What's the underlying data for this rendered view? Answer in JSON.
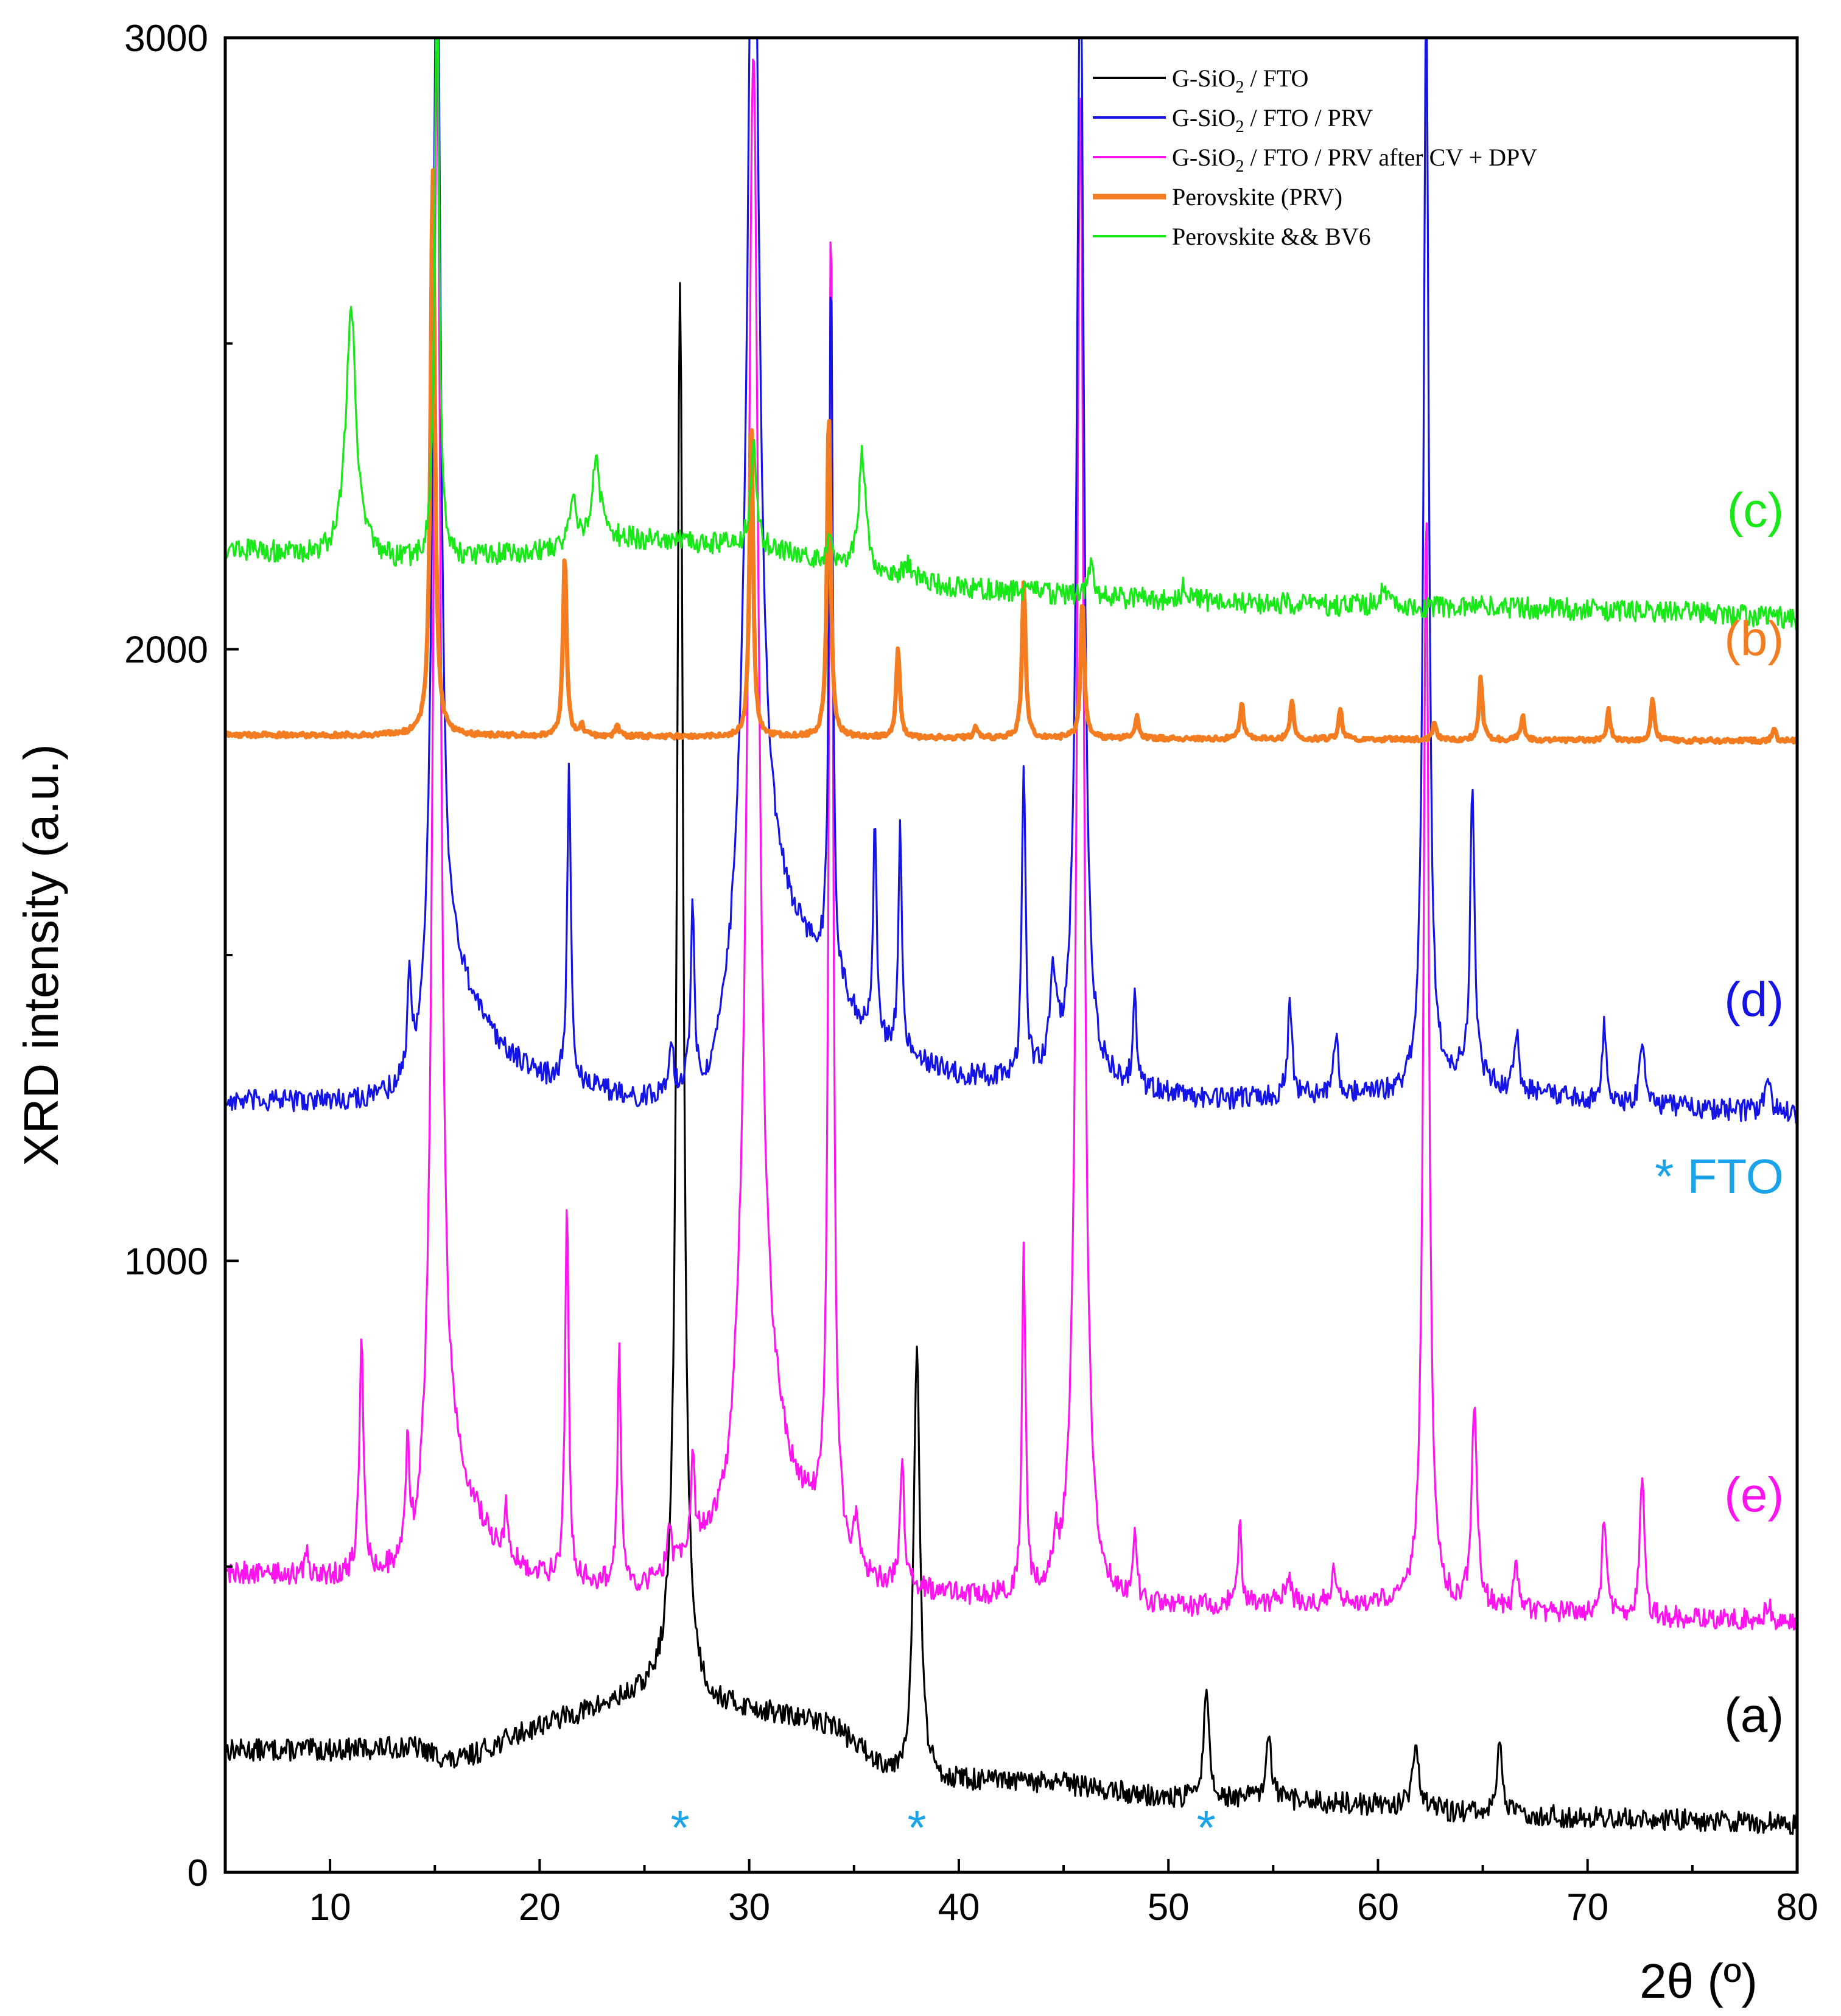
{
  "chart_data": {
    "type": "line",
    "title": "",
    "xlabel": "2θ (º)",
    "ylabel": "XRD intensity (a.u.)",
    "xlim": [
      5,
      80
    ],
    "ylim": [
      0,
      3000
    ],
    "x_ticks": [
      10,
      20,
      30,
      40,
      50,
      60,
      70,
      80
    ],
    "y_ticks": [
      0,
      1000,
      2000,
      3000
    ],
    "fto_label": "* FTO",
    "fto_marker": "*",
    "fto_color": "#1aa3e8",
    "fto_positions": [
      26.7,
      38.0,
      51.8
    ],
    "series": [
      {
        "name": "G-SiO2 / FTO",
        "legend_main": "G-SiO",
        "legend_sub": "2",
        "legend_rest": " / FTO",
        "curve_label": "(a)",
        "color": "#000000",
        "label_color": "#000000",
        "label_y": 230,
        "anchors": [
          [
            5,
            200
          ],
          [
            10,
            200
          ],
          [
            14,
            205
          ],
          [
            16,
            180
          ],
          [
            20,
            240
          ],
          [
            24,
            280
          ],
          [
            26,
            300
          ],
          [
            28,
            270
          ],
          [
            30,
            265
          ],
          [
            34,
            240
          ],
          [
            36,
            180
          ],
          [
            37,
            160
          ],
          [
            39,
            150
          ],
          [
            45,
            145
          ],
          [
            50,
            120
          ],
          [
            54,
            120
          ],
          [
            60,
            110
          ],
          [
            65,
            95
          ],
          [
            70,
            90
          ],
          [
            75,
            85
          ],
          [
            80,
            80
          ]
        ],
        "peaks": [
          [
            26.7,
            2320,
            0.18
          ],
          [
            38.0,
            700,
            0.18
          ],
          [
            51.8,
            180,
            0.15
          ],
          [
            54.8,
            100,
            0.15
          ],
          [
            61.8,
            100,
            0.2
          ],
          [
            65.8,
            120,
            0.15
          ]
        ]
      },
      {
        "name": "Perovskite (PRV)",
        "legend_main": "Perovskite (PRV)",
        "legend_sub": "",
        "legend_rest": "",
        "curve_label": "(b)",
        "color": "#f47c20",
        "label_color": "#f47c20",
        "label_y": 1990,
        "anchors": [
          [
            5,
            1860
          ],
          [
            80,
            1850
          ]
        ],
        "peaks": [
          [
            14.9,
            930,
            0.12
          ],
          [
            21.2,
            300,
            0.1
          ],
          [
            22.0,
            20,
            0.1
          ],
          [
            23.7,
            20,
            0.1
          ],
          [
            30.1,
            530,
            0.1
          ],
          [
            33.8,
            540,
            0.1
          ],
          [
            37.1,
            150,
            0.1
          ],
          [
            40.8,
            20,
            0.1
          ],
          [
            43.1,
            260,
            0.1
          ],
          [
            45.9,
            230,
            0.1
          ],
          [
            48.5,
            40,
            0.1
          ],
          [
            53.5,
            60,
            0.1
          ],
          [
            55.9,
            65,
            0.1
          ],
          [
            58.2,
            50,
            0.1
          ],
          [
            62.7,
            30,
            0.1
          ],
          [
            64.9,
            100,
            0.1
          ],
          [
            66.9,
            40,
            0.1
          ],
          [
            71.0,
            50,
            0.1
          ],
          [
            73.1,
            70,
            0.1
          ],
          [
            78.9,
            20,
            0.1
          ]
        ]
      },
      {
        "name": "Perovskite && BV6",
        "legend_main": "Perovskite && BV6",
        "legend_sub": "",
        "legend_rest": "",
        "curve_label": "(c)",
        "color": "#18e818",
        "label_color": "#18e818",
        "label_y": 2200,
        "anchors": [
          [
            5,
            2165
          ],
          [
            10,
            2150
          ],
          [
            14,
            2140
          ],
          [
            20,
            2160
          ],
          [
            24,
            2180
          ],
          [
            30,
            2170
          ],
          [
            34,
            2140
          ],
          [
            40,
            2100
          ],
          [
            45,
            2090
          ],
          [
            50,
            2080
          ],
          [
            55,
            2075
          ],
          [
            60,
            2070
          ],
          [
            65,
            2070
          ],
          [
            70,
            2065
          ],
          [
            75,
            2060
          ],
          [
            80,
            2050
          ]
        ],
        "peaks": [
          [
            11.0,
            410,
            0.3
          ],
          [
            15.1,
            1000,
            0.12
          ],
          [
            21.6,
            80,
            0.2
          ],
          [
            22.7,
            130,
            0.25
          ],
          [
            30.2,
            180,
            0.15
          ],
          [
            33.8,
            40,
            0.15
          ],
          [
            35.4,
            190,
            0.2
          ],
          [
            37.6,
            25,
            0.2
          ],
          [
            46.3,
            50,
            0.15
          ],
          [
            50.8,
            25,
            0.2
          ],
          [
            60.2,
            20,
            0.3
          ]
        ]
      },
      {
        "name": "G-SiO2 / FTO / PRV",
        "legend_main": "G-SiO",
        "legend_sub": "2",
        "legend_rest": " / FTO / PRV",
        "curve_label": "(d)",
        "color": "#1414e6",
        "label_color": "#1414e6",
        "label_y": 1400,
        "anchors": [
          [
            5,
            1260
          ],
          [
            12,
            1260
          ],
          [
            14,
            1270
          ],
          [
            16,
            1450
          ],
          [
            18,
            1350
          ],
          [
            20,
            1300
          ],
          [
            25,
            1260
          ],
          [
            28,
            1280
          ],
          [
            29,
            1400
          ],
          [
            30,
            1700
          ],
          [
            32,
            1550
          ],
          [
            34,
            1450
          ],
          [
            36,
            1350
          ],
          [
            40,
            1300
          ],
          [
            44,
            1290
          ],
          [
            48,
            1280
          ],
          [
            52,
            1260
          ],
          [
            56,
            1270
          ],
          [
            62,
            1270
          ],
          [
            64,
            1300
          ],
          [
            66,
            1280
          ],
          [
            70,
            1260
          ],
          [
            80,
            1240
          ]
        ],
        "peaks": [
          [
            13.8,
            170,
            0.12
          ],
          [
            15.1,
            1900,
            0.22
          ],
          [
            21.4,
            520,
            0.1
          ],
          [
            26.3,
            80,
            0.1
          ],
          [
            27.3,
            300,
            0.1
          ],
          [
            30.2,
            1800,
            0.3
          ],
          [
            33.9,
            1180,
            0.1
          ],
          [
            36.0,
            370,
            0.1
          ],
          [
            37.2,
            380,
            0.1
          ],
          [
            43.1,
            520,
            0.1
          ],
          [
            44.5,
            150,
            0.2
          ],
          [
            45.8,
            1900,
            0.2
          ],
          [
            48.4,
            150,
            0.1
          ],
          [
            55.8,
            150,
            0.12
          ],
          [
            58.0,
            100,
            0.12
          ],
          [
            62.3,
            1800,
            0.15
          ],
          [
            64.5,
            480,
            0.12
          ],
          [
            66.6,
            100,
            0.12
          ],
          [
            70.8,
            130,
            0.12
          ],
          [
            72.6,
            110,
            0.12
          ],
          [
            78.6,
            50,
            0.15
          ]
        ]
      },
      {
        "name": "G-SiO2 / FTO / PRV after CV + DPV",
        "legend_main": "G-SiO",
        "legend_sub": "2",
        "legend_rest": " / FTO / PRV after CV + DPV",
        "curve_label": "(e)",
        "color": "#ff14f0",
        "label_color": "#ff14f0",
        "label_y": 590,
        "anchors": [
          [
            5,
            490
          ],
          [
            10,
            480
          ],
          [
            14,
            480
          ],
          [
            16,
            620
          ],
          [
            18,
            520
          ],
          [
            20,
            480
          ],
          [
            25,
            460
          ],
          [
            29,
            560
          ],
          [
            30,
            800
          ],
          [
            32,
            620
          ],
          [
            34,
            520
          ],
          [
            36,
            470
          ],
          [
            40,
            450
          ],
          [
            45,
            440
          ],
          [
            50,
            430
          ],
          [
            55,
            440
          ],
          [
            60,
            440
          ],
          [
            65,
            430
          ],
          [
            70,
            420
          ],
          [
            80,
            410
          ]
        ],
        "peaks": [
          [
            8.9,
            40,
            0.1
          ],
          [
            11.5,
            380,
            0.12
          ],
          [
            13.7,
            190,
            0.1
          ],
          [
            15.1,
            2450,
            0.22
          ],
          [
            18.4,
            80,
            0.1
          ],
          [
            21.3,
            630,
            0.1
          ],
          [
            23.8,
            380,
            0.1
          ],
          [
            26.2,
            60,
            0.1
          ],
          [
            27.3,
            160,
            0.1
          ],
          [
            30.2,
            2200,
            0.3
          ],
          [
            33.9,
            2200,
            0.12
          ],
          [
            35.1,
            70,
            0.1
          ],
          [
            37.3,
            200,
            0.12
          ],
          [
            43.1,
            570,
            0.1
          ],
          [
            44.6,
            60,
            0.15
          ],
          [
            45.8,
            2500,
            0.2
          ],
          [
            48.4,
            120,
            0.1
          ],
          [
            53.4,
            130,
            0.1
          ],
          [
            55.7,
            50,
            0.12
          ],
          [
            57.9,
            60,
            0.12
          ],
          [
            62.3,
            1800,
            0.15
          ],
          [
            64.6,
            330,
            0.15
          ],
          [
            66.6,
            80,
            0.12
          ],
          [
            70.8,
            170,
            0.12
          ],
          [
            72.6,
            240,
            0.12
          ],
          [
            78.6,
            30,
            0.15
          ]
        ]
      }
    ]
  }
}
